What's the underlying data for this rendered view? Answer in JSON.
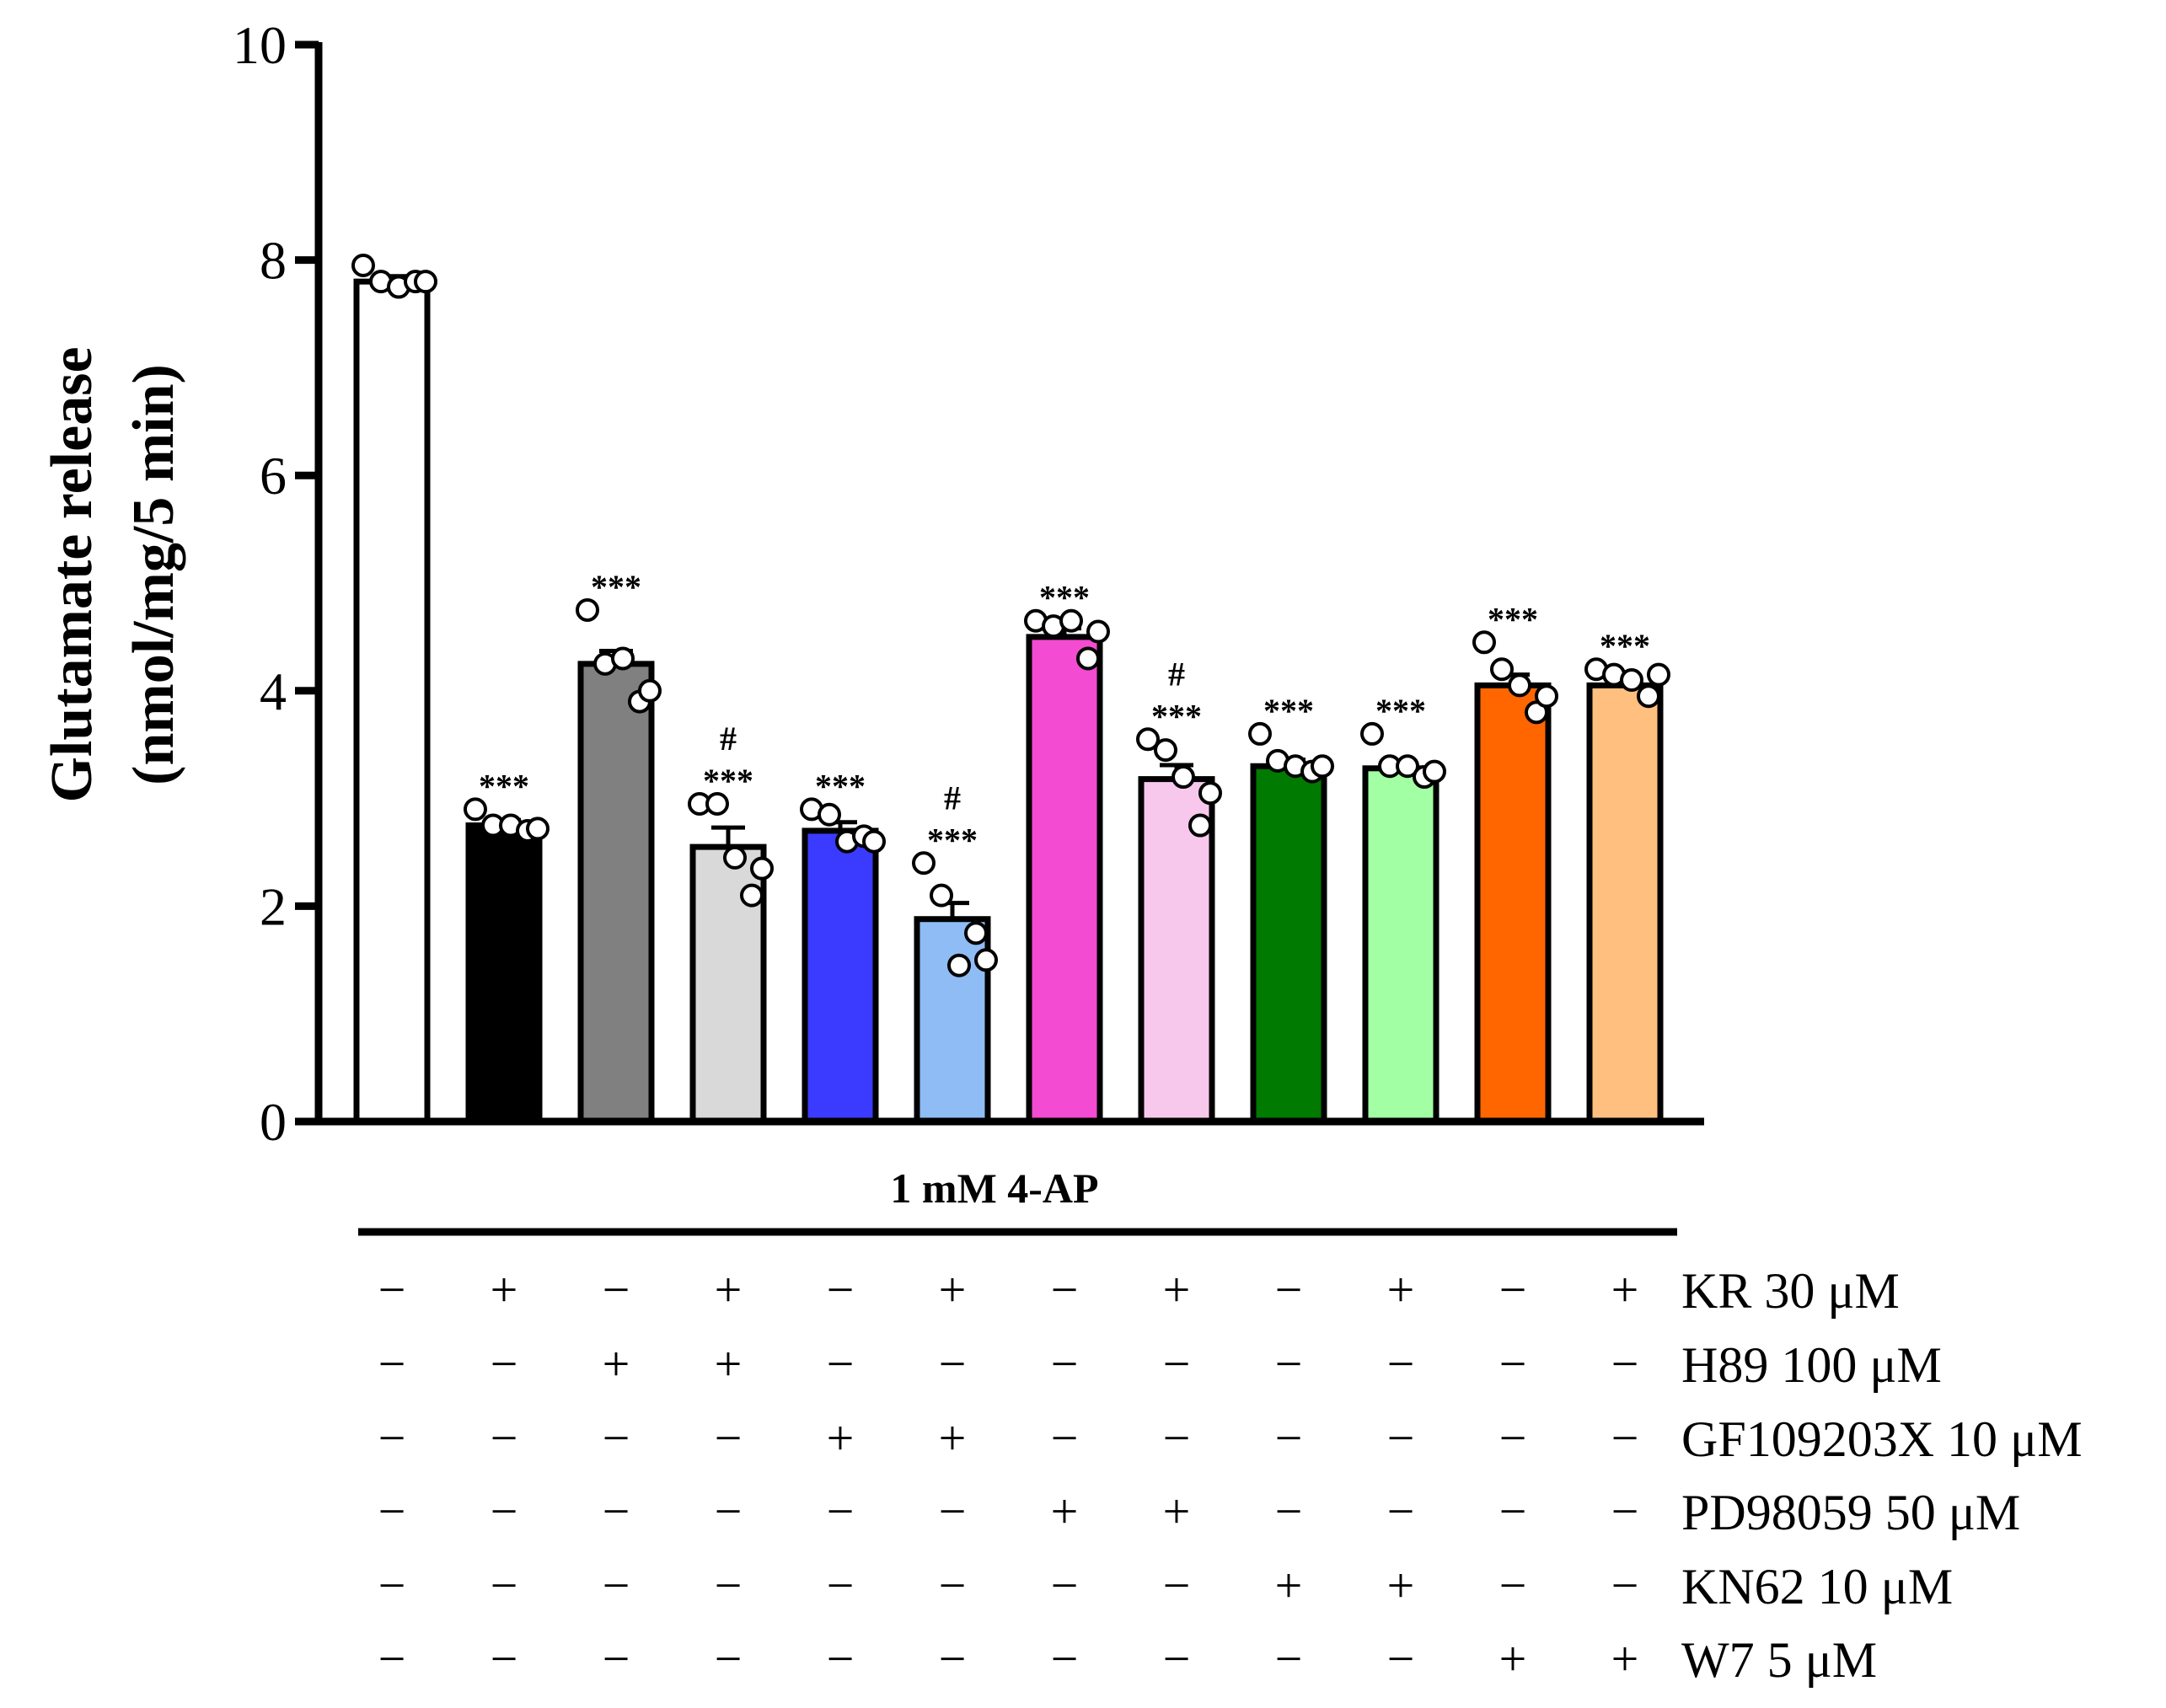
{
  "chart_data": {
    "type": "bar",
    "ylabel_line1": "Glutamate release",
    "ylabel_line2": "(nmol/mg/5 min)",
    "ylim": [
      0,
      10
    ],
    "yticks": [
      "0",
      "2",
      "4",
      "6",
      "8",
      "10"
    ],
    "condition_label": "1 mM 4-AP",
    "bars": [
      {
        "value": 7.8,
        "sem": 0.05,
        "color": "#ffffff",
        "points": [
          7.95,
          7.8,
          7.75,
          7.8,
          7.8
        ],
        "sig": [],
        "treatments": [
          "−",
          "−",
          "−",
          "−",
          "−",
          "−"
        ]
      },
      {
        "value": 2.75,
        "sem": 0.05,
        "color": "#000000",
        "points": [
          2.9,
          2.75,
          2.75,
          2.7,
          2.72
        ],
        "sig": [
          "***"
        ],
        "treatments": [
          "+",
          "−",
          "−",
          "−",
          "−",
          "−"
        ]
      },
      {
        "value": 4.25,
        "sem": 0.12,
        "color": "#808080",
        "points": [
          4.75,
          4.25,
          4.3,
          3.9,
          4.0
        ],
        "sig": [
          "***"
        ],
        "treatments": [
          "−",
          "+",
          "−",
          "−",
          "−",
          "−"
        ]
      },
      {
        "value": 2.55,
        "sem": 0.18,
        "color": "#d9d9d9",
        "points": [
          2.95,
          2.95,
          2.45,
          2.1,
          2.35
        ],
        "sig": [
          "#",
          "***"
        ],
        "treatments": [
          "+",
          "+",
          "−",
          "−",
          "−",
          "−"
        ]
      },
      {
        "value": 2.7,
        "sem": 0.08,
        "color": "#3b3bff",
        "points": [
          2.9,
          2.85,
          2.6,
          2.65,
          2.6
        ],
        "sig": [
          "***"
        ],
        "treatments": [
          "−",
          "−",
          "+",
          "−",
          "−",
          "−"
        ]
      },
      {
        "value": 1.88,
        "sem": 0.15,
        "color": "#8fbcf5",
        "points": [
          2.4,
          2.1,
          1.45,
          1.75,
          1.5
        ],
        "sig": [
          "#",
          "***"
        ],
        "treatments": [
          "+",
          "−",
          "+",
          "−",
          "−",
          "−"
        ]
      },
      {
        "value": 4.5,
        "sem": 0.08,
        "color": "#f34bd1",
        "points": [
          4.65,
          4.6,
          4.65,
          4.3,
          4.55
        ],
        "sig": [
          "***"
        ],
        "treatments": [
          "−",
          "−",
          "−",
          "+",
          "−",
          "−"
        ]
      },
      {
        "value": 3.18,
        "sem": 0.13,
        "color": "#f8c8ec",
        "points": [
          3.55,
          3.45,
          3.2,
          2.75,
          3.05
        ],
        "sig": [
          "#",
          "***"
        ],
        "treatments": [
          "+",
          "−",
          "−",
          "+",
          "−",
          "−"
        ]
      },
      {
        "value": 3.3,
        "sem": 0.06,
        "color": "#007a00",
        "points": [
          3.6,
          3.35,
          3.3,
          3.25,
          3.3
        ],
        "sig": [
          "***"
        ],
        "treatments": [
          "−",
          "−",
          "−",
          "−",
          "+",
          "−"
        ]
      },
      {
        "value": 3.28,
        "sem": 0.06,
        "color": "#a3ffa3",
        "points": [
          3.6,
          3.3,
          3.3,
          3.2,
          3.25
        ],
        "sig": [
          "***"
        ],
        "treatments": [
          "+",
          "−",
          "−",
          "−",
          "+",
          "−"
        ]
      },
      {
        "value": 4.05,
        "sem": 0.1,
        "color": "#ff6600",
        "points": [
          4.45,
          4.2,
          4.05,
          3.8,
          3.95
        ],
        "sig": [
          "***"
        ],
        "treatments": [
          "−",
          "−",
          "−",
          "−",
          "−",
          "+"
        ]
      },
      {
        "value": 4.05,
        "sem": 0.05,
        "color": "#ffc07f",
        "points": [
          4.2,
          4.15,
          4.1,
          3.95,
          4.15
        ],
        "sig": [
          "***"
        ],
        "treatments": [
          "+",
          "−",
          "−",
          "−",
          "−",
          "+"
        ]
      }
    ],
    "treatment_labels": [
      "KR 30 μM",
      "H89 100 μM",
      "GF109203X 10 μM",
      "PD98059 50 μM",
      "KN62 10 μM",
      "W7 5 μM"
    ]
  }
}
